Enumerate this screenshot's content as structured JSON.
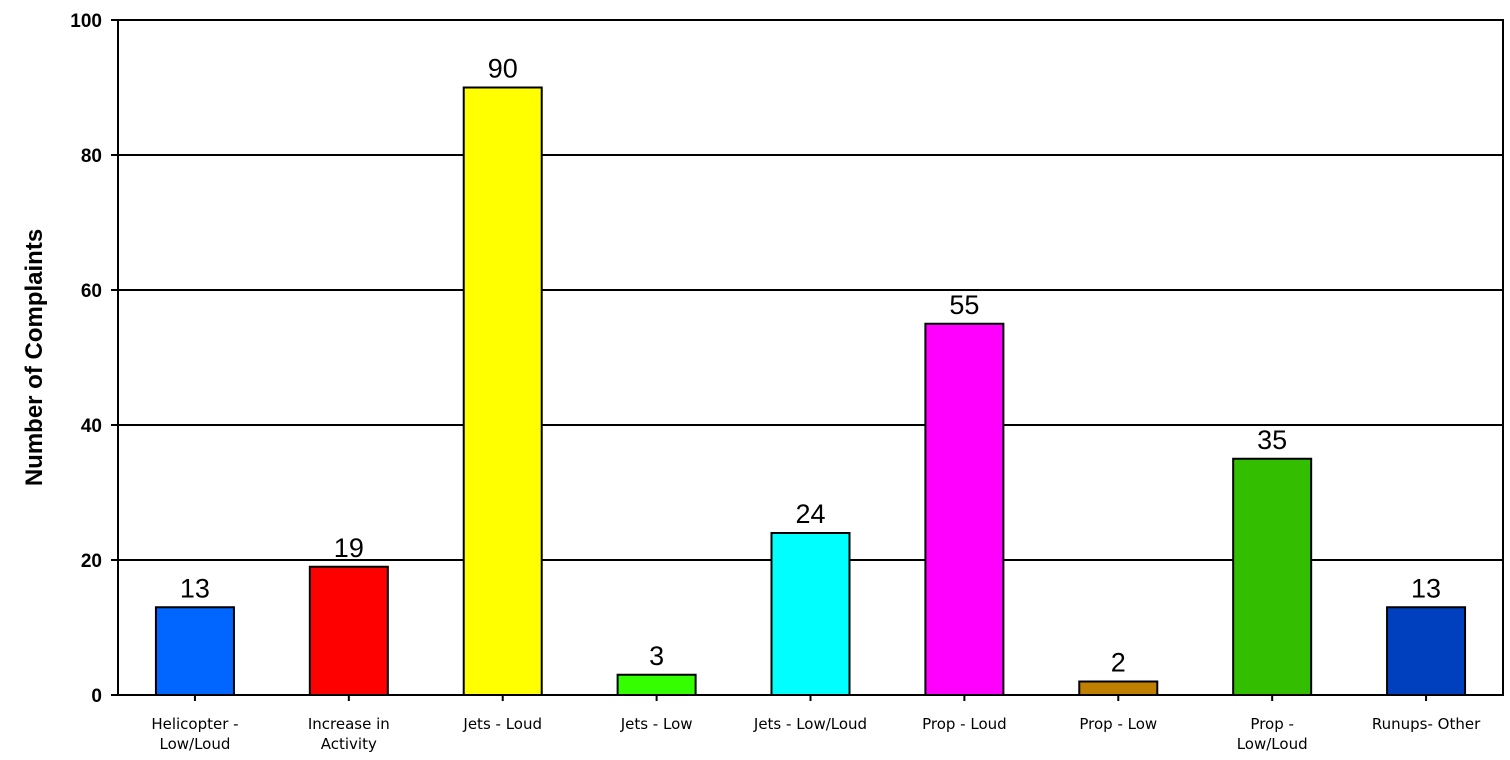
{
  "chart_data": {
    "type": "bar",
    "ylabel": "Number of Complaints",
    "xlabel": "",
    "ylim": [
      0,
      100
    ],
    "yticks": [
      0,
      20,
      40,
      60,
      80,
      100
    ],
    "grid": true,
    "categories": [
      [
        "Helicopter -",
        "Low/Loud"
      ],
      [
        "Increase in",
        "Activity"
      ],
      [
        "Jets - Loud"
      ],
      [
        "Jets - Low"
      ],
      [
        "Jets - Low/Loud"
      ],
      [
        "Prop - Loud"
      ],
      [
        "Prop - Low"
      ],
      [
        "Prop -",
        "Low/Loud"
      ],
      [
        "Runups- Other"
      ]
    ],
    "values": [
      13,
      19,
      90,
      3,
      24,
      55,
      2,
      35,
      13
    ],
    "colors": [
      "#0066ff",
      "#ff0000",
      "#ffff00",
      "#33ff00",
      "#00ffff",
      "#ff00ff",
      "#bf7f00",
      "#33bf00",
      "#0040bf"
    ]
  }
}
